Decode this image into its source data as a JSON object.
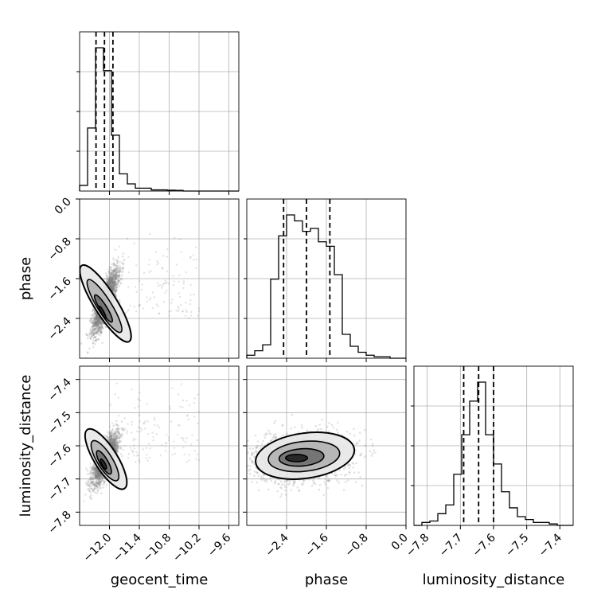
{
  "chart_data": {
    "type": "corner",
    "parameters": [
      "geocent_time",
      "phase",
      "luminosity_distance"
    ],
    "axis_labels": {
      "geocent_time": "geocent_time",
      "phase": "phase",
      "luminosity_distance": "luminosity_distance"
    },
    "ranges": {
      "geocent_time": [
        -12.6,
        -9.4
      ],
      "phase": [
        -3.2,
        0.0
      ],
      "luminosity_distance": [
        -7.84,
        -7.36
      ]
    },
    "ticks": {
      "geocent_time": [
        -12.0,
        -11.4,
        -10.8,
        -10.2,
        -9.6
      ],
      "phase": [
        -2.4,
        -1.6,
        -0.8,
        0.0
      ],
      "luminosity_distance": [
        -7.8,
        -7.7,
        -7.6,
        -7.5,
        -7.4
      ]
    },
    "tick_labels": {
      "geocent_time": [
        "−12.0",
        "−11.4",
        "−10.8",
        "−10.2",
        "−9.6"
      ],
      "phase": [
        "−2.4",
        "−1.6",
        "−0.8",
        "0.0"
      ],
      "luminosity_distance": [
        "−7.8",
        "−7.7",
        "−7.6",
        "−7.5",
        "−7.4"
      ]
    },
    "diag_y_tick_labels": {
      "phase": [
        "0.0",
        "−0.8",
        "−1.6",
        "−2.4"
      ],
      "luminosity_distance": [
        "−7.4",
        "−7.5",
        "−7.6",
        "−7.7",
        "−7.8"
      ]
    },
    "quantiles": {
      "geocent_time": [
        -12.27,
        -12.1,
        -11.93
      ],
      "phase": [
        -2.46,
        -2.0,
        -1.53
      ],
      "luminosity_distance": [
        -7.69,
        -7.645,
        -7.6
      ]
    },
    "histograms": {
      "geocent_time": {
        "edges": [
          -12.6,
          -12.44,
          -12.28,
          -12.12,
          -11.96,
          -11.8,
          -11.64,
          -11.48,
          -11.32,
          -11.16,
          -11.0,
          -10.84,
          -10.68,
          -10.52,
          -10.36,
          -10.2,
          -10.04,
          -9.88,
          -9.72,
          -9.56,
          -9.4
        ],
        "counts": [
          0.04,
          0.44,
          1.0,
          0.84,
          0.39,
          0.12,
          0.05,
          0.02,
          0.02,
          0.008,
          0.008,
          0.006,
          0.005,
          0.0,
          0.0,
          0.0,
          0.0,
          0.0,
          0.0,
          0.0
        ]
      },
      "phase": {
        "edges": [
          -3.2,
          -3.04,
          -2.88,
          -2.72,
          -2.56,
          -2.4,
          -2.24,
          -2.08,
          -1.92,
          -1.76,
          -1.6,
          -1.44,
          -1.28,
          -1.12,
          -0.96,
          -0.8,
          -0.64,
          -0.48,
          -0.32,
          -0.16,
          0.0
        ],
        "counts": [
          0.02,
          0.05,
          0.09,
          0.53,
          0.82,
          0.96,
          0.92,
          0.85,
          0.87,
          0.78,
          0.75,
          0.56,
          0.16,
          0.08,
          0.04,
          0.02,
          0.01,
          0.01,
          0.0,
          0.0
        ]
      },
      "luminosity_distance": {
        "edges": [
          -7.84,
          -7.816,
          -7.792,
          -7.768,
          -7.744,
          -7.72,
          -7.696,
          -7.672,
          -7.648,
          -7.624,
          -7.6,
          -7.576,
          -7.552,
          -7.528,
          -7.504,
          -7.48,
          -7.456,
          -7.432,
          -7.408,
          -7.384,
          -7.36
        ],
        "counts": [
          0.0,
          0.02,
          0.03,
          0.08,
          0.14,
          0.35,
          0.62,
          0.85,
          0.98,
          0.62,
          0.42,
          0.23,
          0.12,
          0.06,
          0.04,
          0.02,
          0.02,
          0.01,
          0.0,
          0.0
        ]
      }
    },
    "scatter": [
      {
        "x": "geocent_time",
        "y": "phase",
        "center": [
          -12.08,
          -2.05
        ],
        "spread": [
          0.12,
          0.3
        ],
        "correlation": 0.78,
        "tail": {
          "x_range": [
            -12.0,
            -10.2
          ],
          "y_range": [
            -2.4,
            -0.6
          ]
        }
      },
      {
        "x": "geocent_time",
        "y": "luminosity_distance",
        "center": [
          -12.08,
          -7.64
        ],
        "spread": [
          0.12,
          0.035
        ],
        "correlation": 0.72,
        "tail": {
          "x_range": [
            -12.0,
            -10.2
          ],
          "y_range": [
            -7.65,
            -7.38
          ]
        }
      },
      {
        "x": "phase",
        "y": "luminosity_distance",
        "center": [
          -2.1,
          -7.635
        ],
        "spread": [
          0.45,
          0.035
        ],
        "correlation": 0.15,
        "tail": null
      }
    ],
    "contours": [
      {
        "x": "geocent_time",
        "y": "phase",
        "levels": [
          {
            "cx": -12.08,
            "cy": -2.1,
            "rx": 0.23,
            "ry": 0.9,
            "angle": 32,
            "fill": "#e8e8e8"
          },
          {
            "cx": -12.1,
            "cy": -2.15,
            "rx": 0.14,
            "ry": 0.62,
            "angle": 32,
            "fill": "#b3b3b3"
          },
          {
            "cx": -12.12,
            "cy": -2.2,
            "rx": 0.07,
            "ry": 0.32,
            "angle": 32,
            "fill": "#6f6f6f"
          },
          {
            "cx": -12.14,
            "cy": -2.28,
            "rx": 0.03,
            "ry": 0.14,
            "angle": 28,
            "fill": "#222222"
          }
        ]
      },
      {
        "x": "geocent_time",
        "y": "luminosity_distance",
        "levels": [
          {
            "cx": -12.07,
            "cy": -7.64,
            "rx": 0.23,
            "ry": 0.105,
            "angle": 32,
            "fill": "#e8e8e8"
          },
          {
            "cx": -12.09,
            "cy": -7.645,
            "rx": 0.15,
            "ry": 0.07,
            "angle": 32,
            "fill": "#b3b3b3"
          },
          {
            "cx": -12.11,
            "cy": -7.65,
            "rx": 0.08,
            "ry": 0.04,
            "angle": 30,
            "fill": "#6f6f6f"
          },
          {
            "cx": -12.12,
            "cy": -7.655,
            "rx": 0.035,
            "ry": 0.017,
            "angle": 28,
            "fill": "#222222"
          }
        ]
      },
      {
        "x": "phase",
        "y": "luminosity_distance",
        "levels": [
          {
            "cx": -2.03,
            "cy": -7.63,
            "rx": 1.0,
            "ry": 0.068,
            "angle": 8,
            "fill": "#e8e8e8"
          },
          {
            "cx": -2.05,
            "cy": -7.632,
            "rx": 0.72,
            "ry": 0.045,
            "angle": 6,
            "fill": "#b3b3b3"
          },
          {
            "cx": -2.1,
            "cy": -7.635,
            "rx": 0.45,
            "ry": 0.026,
            "angle": 4,
            "fill": "#6f6f6f"
          },
          {
            "cx": -2.2,
            "cy": -7.637,
            "rx": 0.22,
            "ry": 0.011,
            "angle": 0,
            "fill": "#222222"
          }
        ]
      }
    ],
    "grid": true,
    "colors": {
      "line": "#000000",
      "grid": "#b0b0b0",
      "points": "#7f7f7f"
    }
  }
}
